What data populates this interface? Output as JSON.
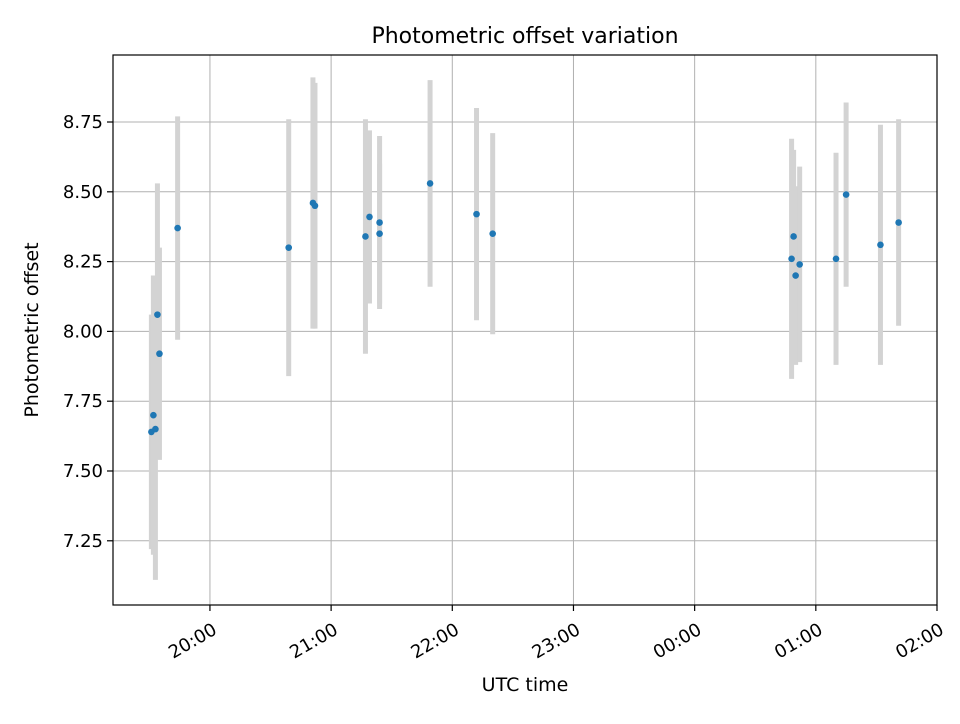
{
  "chart_data": {
    "type": "scatter",
    "title": "Photometric offset variation",
    "xlabel": "UTC time",
    "ylabel": "Photometric offset",
    "x_ticks": [
      "20:00",
      "21:00",
      "22:00",
      "23:00",
      "00:00",
      "01:00",
      "02:00"
    ],
    "y_ticks": [
      "7.25",
      "7.50",
      "7.75",
      "8.00",
      "8.25",
      "8.50",
      "8.75"
    ],
    "ylim": [
      7.02,
      8.99
    ],
    "xlim": [
      "19:12",
      "02:00"
    ],
    "grid": true,
    "colors": {
      "point": "#1f77b4",
      "errorbar": "#d3d3d3",
      "grid": "#b0b0b0"
    },
    "points": [
      {
        "x": "19:31",
        "y": 7.64,
        "err": 0.42
      },
      {
        "x": "19:32",
        "y": 7.7,
        "err": 0.5
      },
      {
        "x": "19:33",
        "y": 7.65,
        "err": 0.54
      },
      {
        "x": "19:34",
        "y": 8.06,
        "err": 0.47
      },
      {
        "x": "19:35",
        "y": 7.92,
        "err": 0.38
      },
      {
        "x": "19:44",
        "y": 8.37,
        "err": 0.4
      },
      {
        "x": "20:39",
        "y": 8.3,
        "err": 0.46
      },
      {
        "x": "20:51",
        "y": 8.46,
        "err": 0.45
      },
      {
        "x": "20:52",
        "y": 8.45,
        "err": 0.44
      },
      {
        "x": "21:17",
        "y": 8.34,
        "err": 0.42
      },
      {
        "x": "21:19",
        "y": 8.41,
        "err": 0.31
      },
      {
        "x": "21:24",
        "y": 8.35,
        "err": 0.25
      },
      {
        "x": "21:24",
        "y": 8.39,
        "err": 0.31
      },
      {
        "x": "21:49",
        "y": 8.53,
        "err": 0.37
      },
      {
        "x": "22:12",
        "y": 8.42,
        "err": 0.38
      },
      {
        "x": "22:20",
        "y": 8.35,
        "err": 0.36
      },
      {
        "x": "00:48",
        "y": 8.26,
        "err": 0.43
      },
      {
        "x": "00:49",
        "y": 8.34,
        "err": 0.31
      },
      {
        "x": "00:50",
        "y": 8.2,
        "err": 0.32
      },
      {
        "x": "00:52",
        "y": 8.24,
        "err": 0.35
      },
      {
        "x": "01:10",
        "y": 8.26,
        "err": 0.38
      },
      {
        "x": "01:15",
        "y": 8.49,
        "err": 0.33
      },
      {
        "x": "01:32",
        "y": 8.31,
        "err": 0.43
      },
      {
        "x": "01:41",
        "y": 8.39,
        "err": 0.37
      }
    ]
  }
}
